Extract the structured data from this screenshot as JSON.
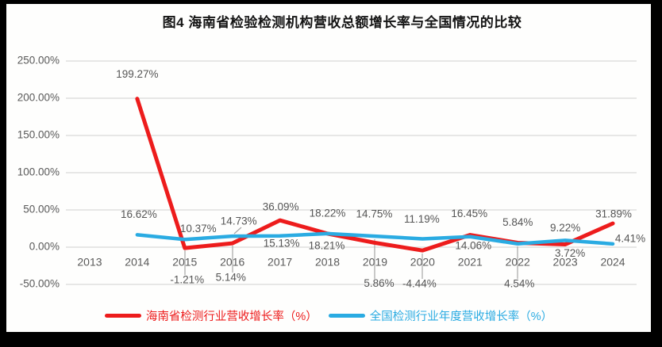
{
  "frame": {
    "border_color": "#000000",
    "canvas_background": "#fefefd"
  },
  "chart_data": {
    "type": "line",
    "title": "图4 海南省检验检测机构营收总额增长率与全国情况的比较",
    "categories": [
      "2013",
      "2014",
      "2015",
      "2016",
      "2017",
      "2018",
      "2019",
      "2020",
      "2021",
      "2022",
      "2023",
      "2024"
    ],
    "series": [
      {
        "name": "海南省检测行业营收增长率（%）",
        "color": "#ed1c1c",
        "values": [
          null,
          199.27,
          -1.21,
          5.14,
          36.09,
          18.22,
          5.86,
          -4.44,
          16.45,
          5.84,
          3.72,
          31.89
        ]
      },
      {
        "name": "全国检测行业年度营收增长率（%）",
        "color": "#2aabe2",
        "values": [
          null,
          16.62,
          10.37,
          14.73,
          15.13,
          18.21,
          14.75,
          11.19,
          14.06,
          4.54,
          9.22,
          4.41
        ]
      }
    ],
    "data_label_format": "0.00%",
    "y_ticks": [
      "250.00%",
      "200.00%",
      "150.00%",
      "100.00%",
      "50.00%",
      "0.00%",
      "-50.00%"
    ],
    "y_tick_values": [
      250,
      200,
      150,
      100,
      50,
      0,
      -50
    ],
    "ylim": [
      -50,
      250
    ],
    "xlabel": "",
    "ylabel": "",
    "grid": true,
    "legend_position": "bottom",
    "colors": {
      "gridline": "#d9d9d9",
      "axis_text": "#595959",
      "data_label_text": "#555555",
      "leader_line": "#a6a6a6",
      "title_text": "#141414"
    }
  }
}
